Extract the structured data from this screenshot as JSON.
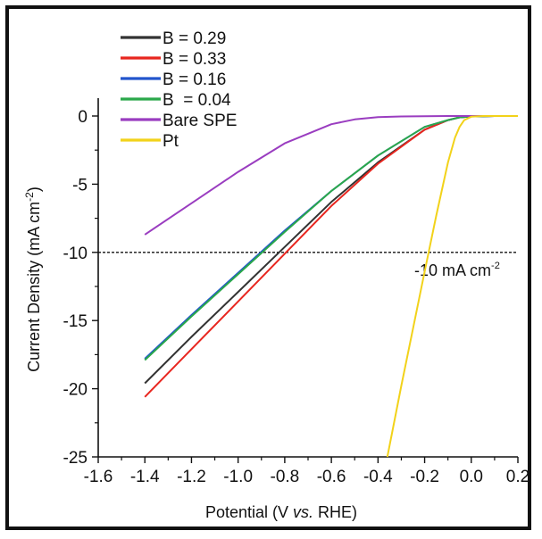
{
  "chart_data": {
    "type": "line",
    "xlabel": "Potential (V vs. RHE)",
    "xlabel_parts": [
      "Potential (V ",
      "vs.",
      " RHE)"
    ],
    "ylabel": "Current Density (mA cm-2)",
    "ylabel_parts": [
      "Current Density (mA cm",
      "-2",
      ")"
    ],
    "xlim": [
      -1.6,
      0.2
    ],
    "ylim": [
      -25,
      0
    ],
    "xticks": [
      "-1.6",
      "-1.4",
      "-1.2",
      "-1.0",
      "-0.8",
      "-0.6",
      "-0.4",
      "-0.2",
      "0.0",
      "0.2"
    ],
    "yticks": [
      "0",
      "-5",
      "-10",
      "-15",
      "-20",
      "-25"
    ],
    "grid": false,
    "legend_position": "top-left",
    "reference_line": {
      "y": -10,
      "style": "dashed",
      "label_main": "-10 mA cm",
      "label_sup": "-2"
    },
    "series": [
      {
        "name": "B = 0.29",
        "color": "#333333",
        "x": [
          -1.4,
          -1.2,
          -1.0,
          -0.8,
          -0.6,
          -0.4,
          -0.2,
          -0.1,
          -0.05,
          0.0,
          0.1,
          0.2
        ],
        "y": [
          -19.6,
          -16.2,
          -12.9,
          -9.6,
          -6.3,
          -3.4,
          -1.0,
          -0.3,
          -0.1,
          -0.03,
          0.0,
          0.0
        ]
      },
      {
        "name": "B = 0.33",
        "color": "#e8261f",
        "x": [
          -1.4,
          -1.2,
          -1.0,
          -0.8,
          -0.6,
          -0.4,
          -0.2,
          -0.1,
          -0.05,
          0.0,
          0.1,
          0.2
        ],
        "y": [
          -20.6,
          -17.1,
          -13.6,
          -10.1,
          -6.6,
          -3.5,
          -1.0,
          -0.3,
          -0.1,
          -0.03,
          0.0,
          0.0
        ]
      },
      {
        "name": "B = 0.16",
        "color": "#2255cc",
        "x": [
          -1.4,
          -1.2,
          -1.0,
          -0.8,
          -0.6,
          -0.4,
          -0.2,
          -0.1,
          -0.05,
          0.0,
          0.1,
          0.2
        ],
        "y": [
          -17.8,
          -14.6,
          -11.5,
          -8.4,
          -5.5,
          -2.9,
          -0.8,
          -0.3,
          -0.1,
          -0.03,
          0.0,
          0.0
        ]
      },
      {
        "name": "B  = 0.04",
        "color": "#2aa84a",
        "x": [
          -1.4,
          -1.2,
          -1.0,
          -0.8,
          -0.6,
          -0.4,
          -0.2,
          -0.1,
          -0.05,
          0.0,
          0.1,
          0.2
        ],
        "y": [
          -17.9,
          -14.7,
          -11.6,
          -8.5,
          -5.5,
          -2.9,
          -0.8,
          -0.3,
          -0.1,
          -0.03,
          0.0,
          0.0
        ]
      },
      {
        "name": "Bare SPE",
        "color": "#9a3dc0",
        "x": [
          -1.4,
          -1.2,
          -1.0,
          -0.8,
          -0.6,
          -0.5,
          -0.4,
          -0.3,
          -0.2,
          -0.1,
          0.0,
          0.2
        ],
        "y": [
          -8.7,
          -6.4,
          -4.1,
          -2.0,
          -0.6,
          -0.25,
          -0.08,
          -0.03,
          -0.01,
          0.0,
          0.0,
          0.0
        ]
      },
      {
        "name": "Pt",
        "color": "#f2d21a",
        "x": [
          -0.36,
          -0.3,
          -0.25,
          -0.2,
          -0.15,
          -0.1,
          -0.07,
          -0.05,
          -0.03,
          0.0,
          0.05,
          0.2
        ],
        "y": [
          -25.0,
          -19.8,
          -15.6,
          -11.4,
          -7.3,
          -3.4,
          -1.6,
          -0.8,
          -0.3,
          -0.05,
          0.0,
          0.0
        ]
      }
    ]
  }
}
